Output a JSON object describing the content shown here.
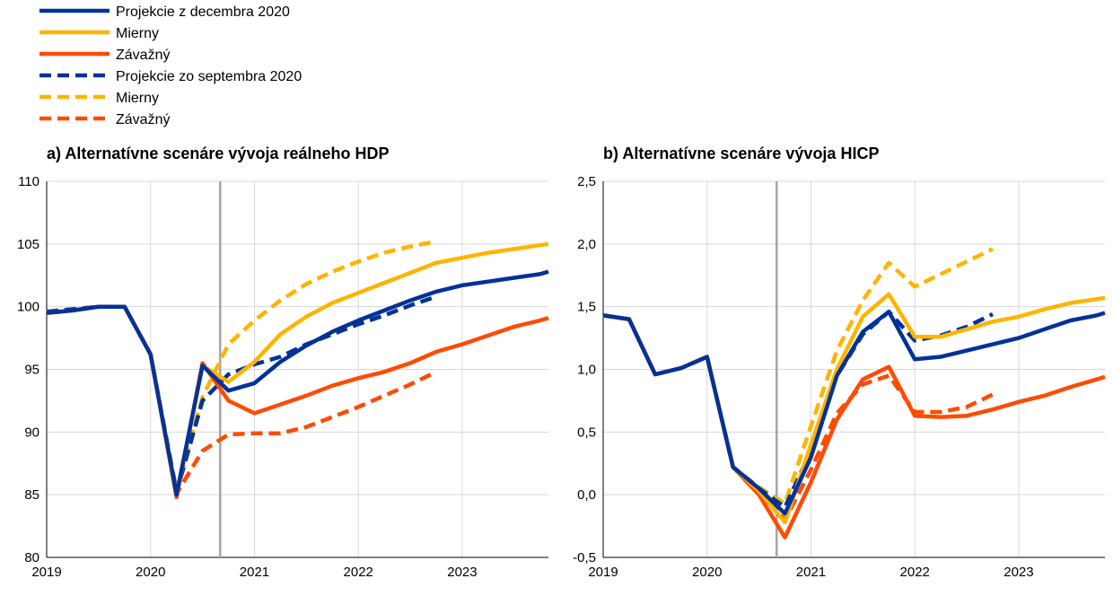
{
  "legend": [
    {
      "label": "Projekcie z decembra 2020",
      "color": "#003299",
      "dashed": false
    },
    {
      "label": "Mierny",
      "color": "#FFB400",
      "dashed": false
    },
    {
      "label": "Závažný",
      "color": "#FF4B00",
      "dashed": false
    },
    {
      "label": "Projekcie zo septembra 2020",
      "color": "#003299",
      "dashed": true
    },
    {
      "label": "Mierny",
      "color": "#FFB400",
      "dashed": true
    },
    {
      "label": "Závažný",
      "color": "#FF4B00",
      "dashed": true
    }
  ],
  "chart_data": [
    {
      "type": "line",
      "title": "a) Alternatívne scenáre vývoja reálneho HDP",
      "xlabel": "",
      "ylabel": "",
      "xlim": [
        2019.0,
        2023.83
      ],
      "ylim": [
        80,
        110
      ],
      "x_ticks": [
        2019,
        2020,
        2021,
        2022,
        2023
      ],
      "x_tick_labels": [
        "2019",
        "2020",
        "2021",
        "2022",
        "2023"
      ],
      "y_ticks": [
        80,
        85,
        90,
        95,
        100,
        105,
        110
      ],
      "y_tick_labels": [
        "80",
        "85",
        "90",
        "95",
        "100",
        "105",
        "110"
      ],
      "vline_x": 2020.67,
      "grid": true,
      "series": [
        {
          "name": "Projekcie z decembra 2020",
          "color": "#003299",
          "dashed": false,
          "x": [
            2019,
            2019.25,
            2019.5,
            2019.75,
            2020,
            2020.25,
            2020.5,
            2020.75,
            2021,
            2021.25,
            2021.5,
            2021.75,
            2022,
            2022.25,
            2022.5,
            2022.75,
            2023,
            2023.25,
            2023.5,
            2023.75,
            2023.83
          ],
          "y": [
            99.5,
            99.7,
            100.0,
            100.0,
            96.2,
            85.0,
            95.3,
            93.3,
            93.9,
            95.6,
            96.9,
            98.0,
            98.9,
            99.7,
            100.5,
            101.2,
            101.7,
            102.0,
            102.3,
            102.6,
            102.8
          ]
        },
        {
          "name": "Mierny",
          "color": "#FFB400",
          "dashed": false,
          "x": [
            2019,
            2019.25,
            2019.5,
            2019.75,
            2020,
            2020.25,
            2020.5,
            2020.75,
            2021,
            2021.25,
            2021.5,
            2021.75,
            2022,
            2022.25,
            2022.5,
            2022.75,
            2023,
            2023.25,
            2023.5,
            2023.75,
            2023.83
          ],
          "y": [
            99.5,
            99.7,
            100.0,
            100.0,
            96.2,
            85.0,
            95.3,
            94.0,
            95.6,
            97.8,
            99.2,
            100.3,
            101.1,
            101.9,
            102.7,
            103.5,
            103.9,
            104.3,
            104.6,
            104.9,
            105.0
          ]
        },
        {
          "name": "Závažný",
          "color": "#FF4B00",
          "dashed": false,
          "x": [
            2019,
            2019.25,
            2019.5,
            2019.75,
            2020,
            2020.25,
            2020.5,
            2020.75,
            2021,
            2021.25,
            2021.5,
            2021.75,
            2022,
            2022.25,
            2022.5,
            2022.75,
            2023,
            2023.25,
            2023.5,
            2023.75,
            2023.83
          ],
          "y": [
            99.5,
            99.7,
            100.0,
            100.0,
            96.2,
            84.8,
            95.5,
            92.5,
            91.5,
            92.2,
            92.9,
            93.7,
            94.3,
            94.8,
            95.5,
            96.4,
            97.0,
            97.7,
            98.4,
            98.9,
            99.1
          ]
        },
        {
          "name": "Projekcie zo septembra 2020",
          "color": "#003299",
          "dashed": true,
          "x": [
            2019,
            2019.25,
            2019.5,
            2019.75,
            2020,
            2020.25,
            2020.5,
            2020.75,
            2021,
            2021.25,
            2021.5,
            2021.75,
            2022,
            2022.25,
            2022.5,
            2022.75
          ],
          "y": [
            99.6,
            99.8,
            100.0,
            100.0,
            96.2,
            85.2,
            92.5,
            94.6,
            95.4,
            96.0,
            97.0,
            97.8,
            98.6,
            99.3,
            100.1,
            100.8
          ]
        },
        {
          "name": "Mierny",
          "color": "#FFB400",
          "dashed": true,
          "x": [
            2019,
            2019.25,
            2019.5,
            2019.75,
            2020,
            2020.25,
            2020.5,
            2020.75,
            2021,
            2021.25,
            2021.5,
            2021.75,
            2022,
            2022.25,
            2022.5,
            2022.75
          ],
          "y": [
            99.6,
            99.8,
            100.0,
            100.0,
            96.2,
            85.3,
            92.8,
            97.0,
            98.9,
            100.5,
            101.8,
            102.8,
            103.6,
            104.3,
            104.8,
            105.2
          ]
        },
        {
          "name": "Závažný",
          "color": "#FF4B00",
          "dashed": true,
          "x": [
            2019,
            2019.25,
            2019.5,
            2019.75,
            2020,
            2020.25,
            2020.5,
            2020.75,
            2021,
            2021.25,
            2021.5,
            2021.75,
            2022,
            2022.25,
            2022.5,
            2022.75
          ],
          "y": [
            99.6,
            99.8,
            100.0,
            100.0,
            96.2,
            85.1,
            88.5,
            89.8,
            89.9,
            89.9,
            90.4,
            91.2,
            92.0,
            92.9,
            93.8,
            94.8
          ]
        }
      ]
    },
    {
      "type": "line",
      "title": "b) Alternatívne scenáre vývoja HICP",
      "xlabel": "",
      "ylabel": "",
      "xlim": [
        2019.0,
        2023.83
      ],
      "ylim": [
        -0.5,
        2.5
      ],
      "x_ticks": [
        2019,
        2020,
        2021,
        2022,
        2023
      ],
      "x_tick_labels": [
        "2019",
        "2020",
        "2021",
        "2022",
        "2023"
      ],
      "y_ticks": [
        -0.5,
        0.0,
        0.5,
        1.0,
        1.5,
        2.0,
        2.5
      ],
      "y_tick_labels": [
        "-0,5",
        "0,0",
        "0,5",
        "1,0",
        "1,5",
        "2,0",
        "2,5"
      ],
      "vline_x": 2020.67,
      "grid": true,
      "series": [
        {
          "name": "Projekcie z decembra 2020",
          "color": "#003299",
          "dashed": false,
          "x": [
            2019,
            2019.25,
            2019.5,
            2019.75,
            2020,
            2020.25,
            2020.5,
            2020.75,
            2021,
            2021.25,
            2021.5,
            2021.75,
            2022,
            2022.25,
            2022.5,
            2022.75,
            2023,
            2023.25,
            2023.5,
            2023.75,
            2023.83
          ],
          "y": [
            1.43,
            1.4,
            0.96,
            1.01,
            1.1,
            0.22,
            0.05,
            -0.15,
            0.3,
            0.95,
            1.3,
            1.46,
            1.08,
            1.1,
            1.15,
            1.2,
            1.25,
            1.32,
            1.39,
            1.43,
            1.45
          ]
        },
        {
          "name": "Mierny",
          "color": "#FFB400",
          "dashed": false,
          "x": [
            2019,
            2019.25,
            2019.5,
            2019.75,
            2020,
            2020.25,
            2020.5,
            2020.75,
            2021,
            2021.25,
            2021.5,
            2021.75,
            2022,
            2022.25,
            2022.5,
            2022.75,
            2023,
            2023.25,
            2023.5,
            2023.75,
            2023.83
          ],
          "y": [
            1.43,
            1.4,
            0.96,
            1.01,
            1.1,
            0.22,
            0.03,
            -0.22,
            0.4,
            1.0,
            1.42,
            1.6,
            1.26,
            1.26,
            1.32,
            1.38,
            1.42,
            1.48,
            1.53,
            1.56,
            1.57
          ]
        },
        {
          "name": "Závažný",
          "color": "#FF4B00",
          "dashed": false,
          "x": [
            2019,
            2019.25,
            2019.5,
            2019.75,
            2020,
            2020.25,
            2020.5,
            2020.75,
            2021,
            2021.25,
            2021.5,
            2021.75,
            2022,
            2022.25,
            2022.5,
            2022.75,
            2023,
            2023.25,
            2023.5,
            2023.75,
            2023.83
          ],
          "y": [
            1.43,
            1.4,
            0.96,
            1.01,
            1.1,
            0.22,
            0.0,
            -0.34,
            0.1,
            0.6,
            0.92,
            1.02,
            0.63,
            0.62,
            0.63,
            0.68,
            0.74,
            0.79,
            0.86,
            0.92,
            0.94
          ]
        },
        {
          "name": "Projekcie zo septembra 2020",
          "color": "#003299",
          "dashed": true,
          "x": [
            2019,
            2019.25,
            2019.5,
            2019.75,
            2020,
            2020.25,
            2020.5,
            2020.75,
            2021,
            2021.25,
            2021.5,
            2021.75,
            2022,
            2022.25,
            2022.5,
            2022.75
          ],
          "y": [
            1.43,
            1.4,
            0.96,
            1.01,
            1.1,
            0.22,
            0.05,
            -0.1,
            0.35,
            0.95,
            1.28,
            1.46,
            1.23,
            1.27,
            1.34,
            1.44
          ]
        },
        {
          "name": "Mierny",
          "color": "#FFB400",
          "dashed": true,
          "x": [
            2019,
            2019.25,
            2019.5,
            2019.75,
            2020,
            2020.25,
            2020.5,
            2020.75,
            2021,
            2021.25,
            2021.5,
            2021.75,
            2022,
            2022.25,
            2022.5,
            2022.75
          ],
          "y": [
            1.43,
            1.4,
            0.96,
            1.01,
            1.1,
            0.22,
            0.06,
            -0.07,
            0.55,
            1.15,
            1.55,
            1.85,
            1.66,
            1.76,
            1.86,
            1.96
          ]
        },
        {
          "name": "Závažný",
          "color": "#FF4B00",
          "dashed": true,
          "x": [
            2019,
            2019.25,
            2019.5,
            2019.75,
            2020,
            2020.25,
            2020.5,
            2020.75,
            2021,
            2021.25,
            2021.5,
            2021.75,
            2022,
            2022.25,
            2022.5,
            2022.75
          ],
          "y": [
            1.43,
            1.4,
            0.96,
            1.01,
            1.1,
            0.22,
            0.02,
            -0.2,
            0.2,
            0.65,
            0.88,
            0.95,
            0.66,
            0.66,
            0.7,
            0.8
          ]
        }
      ]
    }
  ]
}
